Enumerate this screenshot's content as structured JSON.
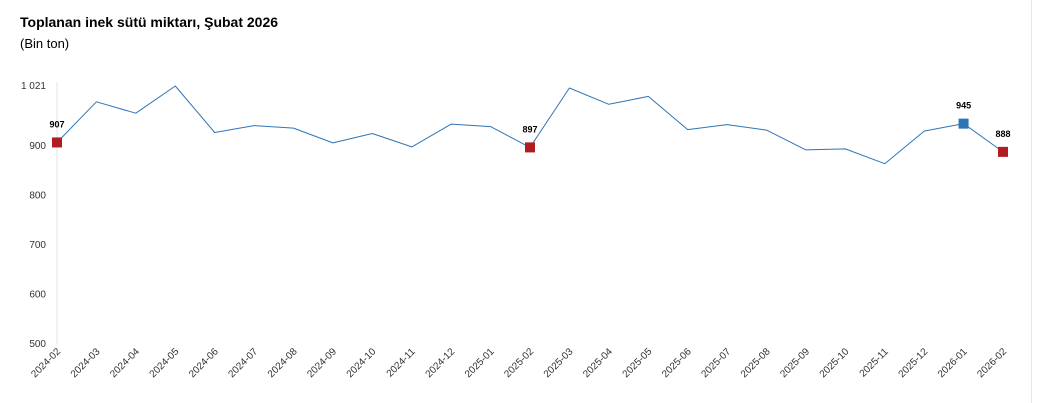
{
  "chart_data": {
    "type": "line",
    "title": "Toplanan inek sütü miktarı, Şubat 2026",
    "subtitle": "(Bin ton)",
    "xlabel": "",
    "ylabel": "",
    "ylim": [
      500,
      1021
    ],
    "yticks": [
      500,
      600,
      700,
      800,
      900,
      1021
    ],
    "ytick_labels": [
      "500",
      "600",
      "700",
      "800",
      "900",
      "1 021"
    ],
    "grid": false,
    "line_color": "#2e75b6",
    "categories": [
      "2024-02",
      "2024-03",
      "2024-04",
      "2024-05",
      "2024-06",
      "2024-07",
      "2024-08",
      "2024-09",
      "2024-10",
      "2024-11",
      "2024-12",
      "2025-01",
      "2025-02",
      "2025-03",
      "2025-04",
      "2025-05",
      "2025-06",
      "2025-07",
      "2025-08",
      "2025-09",
      "2025-10",
      "2025-11",
      "2025-12",
      "2026-01",
      "2026-02"
    ],
    "series": [
      {
        "values": [
          907,
          989,
          966,
          1021,
          927,
          941,
          936,
          906,
          925,
          898,
          944,
          939,
          897,
          1017,
          984,
          1000,
          933,
          943,
          932,
          892,
          894,
          864,
          930,
          945,
          888
        ]
      }
    ],
    "highlighted_points": [
      {
        "category": "2024-02",
        "value": 907,
        "label": "907",
        "color": "#b01c22"
      },
      {
        "category": "2025-02",
        "value": 897,
        "label": "897",
        "color": "#b01c22"
      },
      {
        "category": "2026-01",
        "value": 945,
        "label": "945",
        "color": "#2e75b6"
      },
      {
        "category": "2026-02",
        "value": 888,
        "label": "888",
        "color": "#b01c22"
      }
    ]
  }
}
